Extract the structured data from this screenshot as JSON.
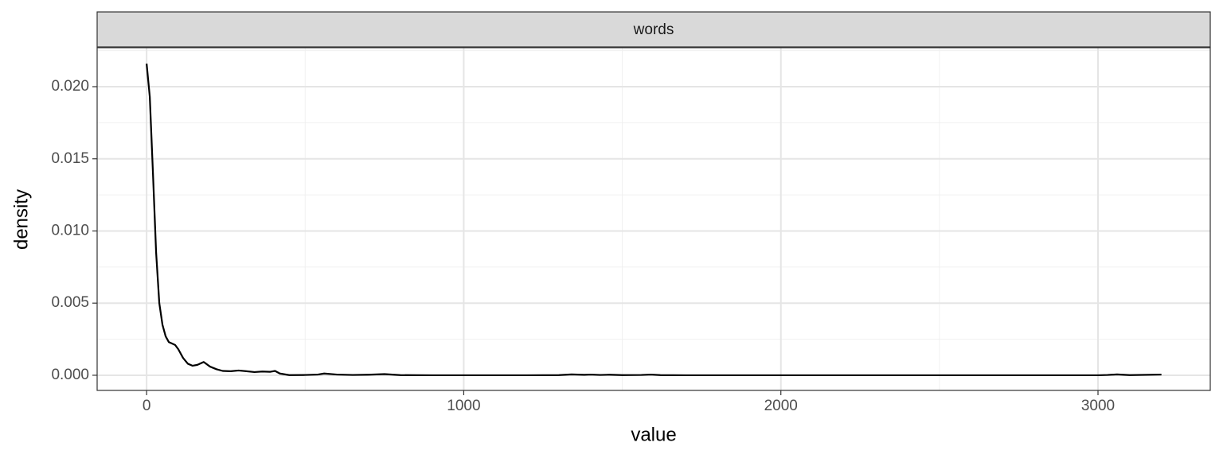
{
  "chart_data": {
    "type": "line",
    "facet_label": "words",
    "x_label": "value",
    "y_label": "density",
    "x": [
      0,
      10,
      20,
      30,
      40,
      50,
      60,
      70,
      80,
      90,
      100,
      115,
      130,
      145,
      160,
      180,
      200,
      220,
      240,
      265,
      290,
      315,
      340,
      365,
      390,
      405,
      420,
      450,
      500,
      540,
      560,
      600,
      650,
      700,
      750,
      800,
      900,
      1000,
      1200,
      1300,
      1340,
      1380,
      1400,
      1430,
      1460,
      1500,
      1560,
      1590,
      1620,
      1700,
      2000,
      2500,
      3000,
      3030,
      3060,
      3100,
      3200
    ],
    "series": [
      {
        "name": "words",
        "color": "#000000",
        "values": [
          0.0216,
          0.0193,
          0.014,
          0.0085,
          0.005,
          0.0035,
          0.0027,
          0.0023,
          0.0022,
          0.0021,
          0.0018,
          0.0012,
          0.0008,
          0.00066,
          0.00072,
          0.00092,
          0.0006,
          0.00042,
          0.0003,
          0.00028,
          0.00033,
          0.00028,
          0.00022,
          0.00026,
          0.00024,
          0.0003,
          0.00012,
          1e-05,
          2e-05,
          5e-05,
          0.00012,
          5e-05,
          2e-05,
          4e-05,
          8e-05,
          1e-05,
          0,
          0,
          0,
          1e-05,
          6e-05,
          3e-05,
          5e-05,
          2e-05,
          4e-05,
          1e-05,
          2e-05,
          5e-05,
          1e-05,
          0,
          0,
          0,
          0,
          2e-05,
          6e-05,
          1e-05,
          5e-05
        ]
      }
    ],
    "xlim": [
      -156,
      3354
    ],
    "ylim": [
      -0.00105,
      0.0227
    ],
    "xticks": [
      0,
      1000,
      2000,
      3000
    ],
    "yticks": [
      {
        "value": 0,
        "label": "0.000"
      },
      {
        "value": 0.005,
        "label": "0.005"
      },
      {
        "value": 0.01,
        "label": "0.010"
      },
      {
        "value": 0.015,
        "label": "0.015"
      },
      {
        "value": 0.02,
        "label": "0.020"
      }
    ],
    "grid": true
  }
}
